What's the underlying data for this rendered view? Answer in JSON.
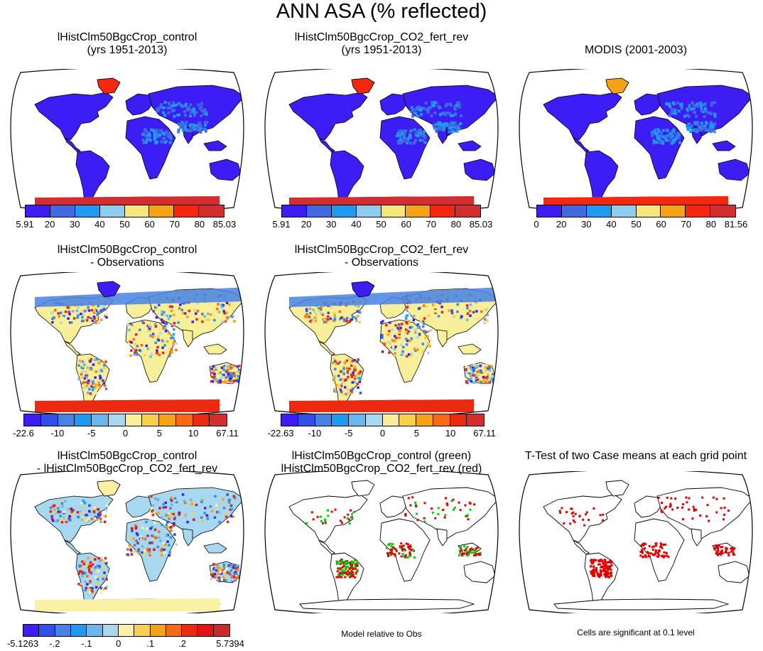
{
  "main_title": "ANN ASA (% reflected)",
  "colors": {
    "abs": [
      "#3c1ef5",
      "#4169e1",
      "#1e9bf0",
      "#8fcdee",
      "#f5e67a",
      "#f5a316",
      "#f5270f",
      "#d42d2d"
    ],
    "diff": [
      "#3c1ef5",
      "#2f4fe6",
      "#4682e6",
      "#1e9bf0",
      "#6ab6ee",
      "#a8d8f0",
      "#f8ef9a",
      "#f7cf4a",
      "#f5a316",
      "#f56a12",
      "#ec2a10",
      "#d42d2d"
    ],
    "diff2": [
      "#3c1ef5",
      "#2f4fe6",
      "#4682e6",
      "#1e9bf0",
      "#6ab6ee",
      "#a8d8f0",
      "#faf1a4",
      "#f7cf4a",
      "#f5a316",
      "#f56a12",
      "#ec2a10",
      "#e01515",
      "#c92a2a"
    ],
    "ocean": "#ffffff",
    "sig_red": "#e00000",
    "sig_green": "#00cc00"
  },
  "panels": [
    {
      "title1": "lHistClm50BgcCrop_control",
      "title2": "(yrs 1951-2013)",
      "style": "abs",
      "ant": "#d42d2d",
      "green": "#f5270f",
      "cbar": {
        "palette": "abs",
        "labels": [
          "5.91",
          "20",
          "30",
          "40",
          "50",
          "60",
          "70",
          "80",
          "85.03"
        ]
      }
    },
    {
      "title1": "lHistClm50BgcCrop_CO2_fert_rev",
      "title2": "(yrs 1951-2013)",
      "style": "abs",
      "ant": "#d42d2d",
      "green": "#f5270f",
      "cbar": {
        "palette": "abs",
        "labels": [
          "5.91",
          "20",
          "30",
          "40",
          "50",
          "60",
          "70",
          "80",
          "85.03"
        ]
      }
    },
    {
      "title1": "",
      "title2": "MODIS (2001-2003)",
      "style": "abs",
      "ant": "#f5270f",
      "green": "#f5a316",
      "cbar": {
        "palette": "abs",
        "labels": [
          "0",
          "20",
          "30",
          "40",
          "50",
          "60",
          "70",
          "80",
          "81.56"
        ]
      }
    },
    {
      "title1": "lHistClm50BgcCrop_control",
      "title2": "- Observations",
      "style": "diff",
      "ant": "#ec2a10",
      "green": "#3c1ef5",
      "cbar": {
        "palette": "diff",
        "labels": [
          "-22.6",
          "",
          "-10",
          "",
          "-5",
          "",
          "0",
          "",
          "5",
          "",
          "10",
          "",
          "67.11"
        ]
      }
    },
    {
      "title1": "lHistClm50BgcCrop_CO2_fert_rev",
      "title2": "- Observations",
      "style": "diff",
      "ant": "#ec2a10",
      "green": "#3c1ef5",
      "cbar": {
        "palette": "diff",
        "labels": [
          "-22.63",
          "",
          "-10",
          "",
          "-5",
          "",
          "0",
          "",
          "5",
          "",
          "10",
          "",
          "67.11"
        ]
      }
    },
    {
      "title1": "lHistClm50BgcCrop_control",
      "title2": "- lHistClm50BgcCrop_CO2_fert_rev",
      "style": "diff2",
      "ant": "#faf1a4",
      "green": "#faf1a4",
      "cbar": {
        "palette": "diff2",
        "labels": [
          "-5.1263",
          "",
          "-.2",
          "",
          "-.1",
          "",
          "0",
          "",
          ".1",
          "",
          ".2",
          "",
          "",
          "5.7394"
        ]
      }
    },
    {
      "title1": "lHistClm50BgcCrop_control (green)",
      "title2": "lHistClm50BgcCrop_CO2_fert_rev (red)",
      "style": "sig2",
      "note": "Model relative to Obs"
    },
    {
      "title1": "",
      "title2": "T-Test of two Case means at each grid point",
      "style": "sig1",
      "note": "Cells are significant at 0.1 level"
    }
  ]
}
